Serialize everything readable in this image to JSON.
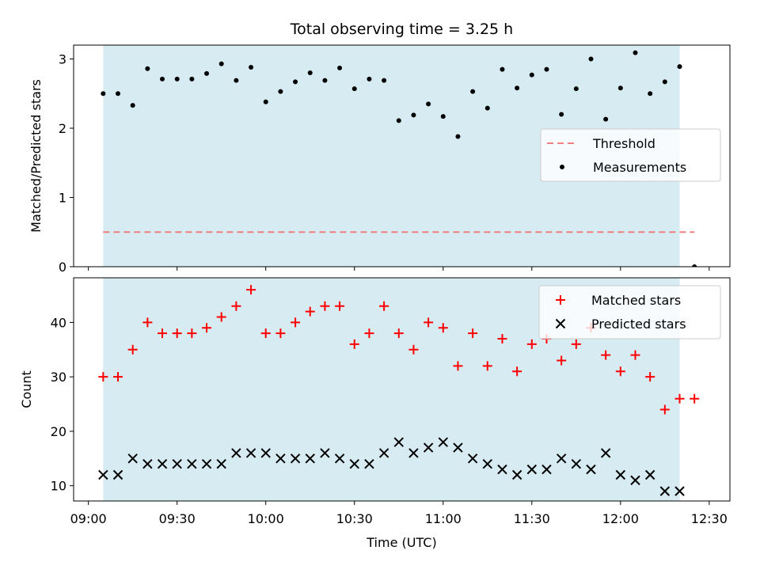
{
  "chart_data": [
    {
      "type": "scatter",
      "title": "Total observing time = 3.25 h",
      "xlabel": "",
      "ylabel": "Matched/Predicted stars",
      "ylim": [
        0,
        3.2
      ],
      "y_ticks": [
        "0",
        "1",
        "2",
        "3"
      ],
      "y_tick_values": [
        0,
        1,
        2,
        3
      ],
      "x_range": [
        "08:55",
        "12:37"
      ],
      "shaded_interval": [
        "09:05",
        "12:20"
      ],
      "shade_color": "#add8e6",
      "legend_position": "center-right",
      "series": [
        {
          "name": "Threshold",
          "style": "dashed-line",
          "color": "#f08080",
          "x": [
            "09:05",
            "12:25"
          ],
          "values": [
            0.5,
            0.5
          ]
        },
        {
          "name": "Measurements",
          "style": "dot",
          "color": "#000000",
          "x": [
            "09:05",
            "09:10",
            "09:15",
            "09:20",
            "09:25",
            "09:30",
            "09:35",
            "09:40",
            "09:45",
            "09:50",
            "09:55",
            "10:00",
            "10:05",
            "10:10",
            "10:15",
            "10:20",
            "10:25",
            "10:30",
            "10:35",
            "10:40",
            "10:45",
            "10:50",
            "10:55",
            "11:00",
            "11:05",
            "11:10",
            "11:15",
            "11:20",
            "11:25",
            "11:30",
            "11:35",
            "11:40",
            "11:45",
            "11:50",
            "11:55",
            "12:00",
            "12:05",
            "12:10",
            "12:15",
            "12:20",
            "12:25"
          ],
          "values": [
            2.5,
            2.5,
            2.33,
            2.86,
            2.71,
            2.71,
            2.71,
            2.79,
            2.93,
            2.69,
            2.88,
            2.38,
            2.53,
            2.67,
            2.8,
            2.69,
            2.87,
            2.57,
            2.71,
            2.69,
            2.11,
            2.19,
            2.35,
            2.17,
            1.88,
            2.53,
            2.29,
            2.85,
            2.58,
            2.77,
            2.85,
            2.2,
            2.57,
            3.0,
            2.13,
            2.58,
            3.09,
            2.5,
            2.67,
            2.89,
            0.0
          ]
        }
      ]
    },
    {
      "type": "scatter",
      "title": "",
      "xlabel": "Time (UTC)",
      "ylabel": "Count",
      "ylim": [
        7.2,
        48.2
      ],
      "y_ticks": [
        "10",
        "20",
        "30",
        "40"
      ],
      "y_tick_values": [
        10,
        20,
        30,
        40
      ],
      "x_ticks": [
        "09:00",
        "09:30",
        "10:00",
        "10:30",
        "11:00",
        "11:30",
        "12:00",
        "12:30"
      ],
      "x_range": [
        "08:55",
        "12:37"
      ],
      "shaded_interval": [
        "09:05",
        "12:20"
      ],
      "shade_color": "#add8e6",
      "legend_position": "top-right",
      "series": [
        {
          "name": "Matched stars",
          "marker": "plus",
          "color": "#ff0000",
          "x": [
            "09:05",
            "09:10",
            "09:15",
            "09:20",
            "09:25",
            "09:30",
            "09:35",
            "09:40",
            "09:45",
            "09:50",
            "09:55",
            "10:00",
            "10:05",
            "10:10",
            "10:15",
            "10:20",
            "10:25",
            "10:30",
            "10:35",
            "10:40",
            "10:45",
            "10:50",
            "10:55",
            "11:00",
            "11:05",
            "11:10",
            "11:15",
            "11:20",
            "11:25",
            "11:30",
            "11:35",
            "11:40",
            "11:45",
            "11:50",
            "11:55",
            "12:00",
            "12:05",
            "12:10",
            "12:15",
            "12:20",
            "12:25"
          ],
          "values": [
            30,
            30,
            35,
            40,
            38,
            38,
            38,
            39,
            41,
            43,
            46,
            38,
            38,
            40,
            42,
            43,
            43,
            36,
            38,
            43,
            38,
            35,
            40,
            39,
            32,
            38,
            32,
            37,
            31,
            36,
            37,
            33,
            36,
            39,
            34,
            31,
            34,
            30,
            24,
            26,
            26
          ]
        },
        {
          "name": "Predicted stars",
          "marker": "x",
          "color": "#000000",
          "x": [
            "09:05",
            "09:10",
            "09:15",
            "09:20",
            "09:25",
            "09:30",
            "09:35",
            "09:40",
            "09:45",
            "09:50",
            "09:55",
            "10:00",
            "10:05",
            "10:10",
            "10:15",
            "10:20",
            "10:25",
            "10:30",
            "10:35",
            "10:40",
            "10:45",
            "10:50",
            "10:55",
            "11:00",
            "11:05",
            "11:10",
            "11:15",
            "11:20",
            "11:25",
            "11:30",
            "11:35",
            "11:40",
            "11:45",
            "11:50",
            "11:55",
            "12:00",
            "12:05",
            "12:10",
            "12:15",
            "12:20"
          ],
          "values": [
            12,
            12,
            15,
            14,
            14,
            14,
            14,
            14,
            14,
            16,
            16,
            16,
            15,
            15,
            15,
            16,
            15,
            14,
            14,
            16,
            18,
            16,
            17,
            18,
            17,
            15,
            14,
            13,
            12,
            13,
            13,
            15,
            14,
            13,
            16,
            12,
            11,
            12,
            9,
            9
          ]
        }
      ]
    }
  ]
}
